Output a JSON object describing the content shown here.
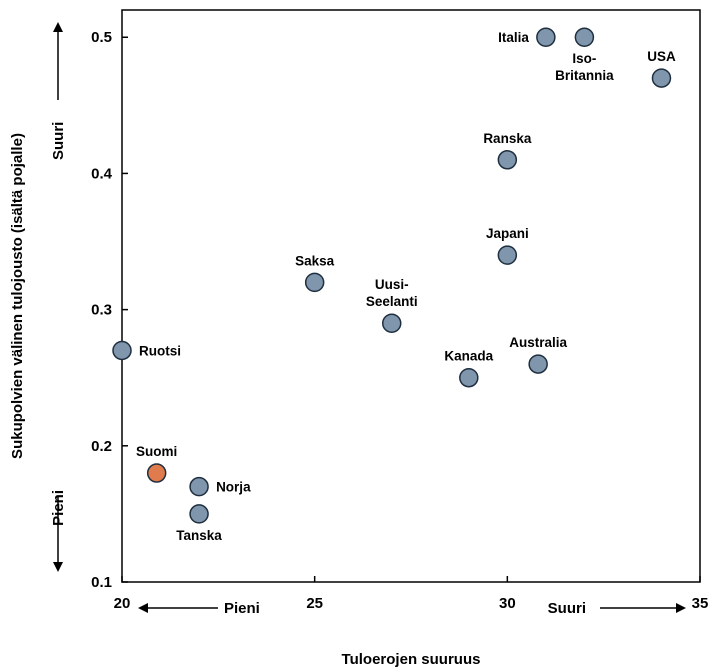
{
  "chart_data": {
    "type": "scatter",
    "title": "",
    "xlabel": "Tuloerojen suuruus",
    "ylabel": "Sukupolvien välinen tulojousto (isältä pojalle)",
    "xlim": [
      20,
      35
    ],
    "ylim": [
      0.1,
      0.52
    ],
    "xticks": [
      "20",
      "25",
      "30",
      "35"
    ],
    "yticks": [
      "0.1",
      "0.2",
      "0.3",
      "0.4",
      "0.5"
    ],
    "x_annotations": {
      "low": "Pieni",
      "high": "Suuri"
    },
    "y_annotations": {
      "low": "Pieni",
      "high": "Suuri"
    },
    "grid": false,
    "colors": {
      "default": "#7f96ad",
      "highlight": "#e07b4d",
      "outline": "#1f2f3f"
    },
    "points": [
      {
        "name": "Italia",
        "lines": [
          "Italia"
        ],
        "x": 31,
        "y": 0.5,
        "highlight": false,
        "label_pos": "left"
      },
      {
        "name": "Iso-Britannia",
        "lines": [
          "Iso-",
          "Britannia"
        ],
        "x": 32,
        "y": 0.5,
        "highlight": false,
        "label_pos": "below"
      },
      {
        "name": "USA",
        "lines": [
          "USA"
        ],
        "x": 34,
        "y": 0.47,
        "highlight": false,
        "label_pos": "above"
      },
      {
        "name": "Ranska",
        "lines": [
          "Ranska"
        ],
        "x": 30,
        "y": 0.41,
        "highlight": false,
        "label_pos": "above"
      },
      {
        "name": "Japani",
        "lines": [
          "Japani"
        ],
        "x": 30,
        "y": 0.34,
        "highlight": false,
        "label_pos": "above"
      },
      {
        "name": "Saksa",
        "lines": [
          "Saksa"
        ],
        "x": 25,
        "y": 0.32,
        "highlight": false,
        "label_pos": "above"
      },
      {
        "name": "Uusi-Seelanti",
        "lines": [
          "Uusi-",
          "Seelanti"
        ],
        "x": 27,
        "y": 0.29,
        "highlight": false,
        "label_pos": "above"
      },
      {
        "name": "Ruotsi",
        "lines": [
          "Ruotsi"
        ],
        "x": 20,
        "y": 0.27,
        "highlight": false,
        "label_pos": "right"
      },
      {
        "name": "Australia",
        "lines": [
          "Australia"
        ],
        "x": 30.8,
        "y": 0.26,
        "highlight": false,
        "label_pos": "above"
      },
      {
        "name": "Kanada",
        "lines": [
          "Kanada"
        ],
        "x": 29,
        "y": 0.25,
        "highlight": false,
        "label_pos": "above"
      },
      {
        "name": "Suomi",
        "lines": [
          "Suomi"
        ],
        "x": 20.9,
        "y": 0.18,
        "highlight": true,
        "label_pos": "above"
      },
      {
        "name": "Norja",
        "lines": [
          "Norja"
        ],
        "x": 22,
        "y": 0.17,
        "highlight": false,
        "label_pos": "right"
      },
      {
        "name": "Tanska",
        "lines": [
          "Tanska"
        ],
        "x": 22,
        "y": 0.15,
        "highlight": false,
        "label_pos": "below"
      }
    ]
  }
}
